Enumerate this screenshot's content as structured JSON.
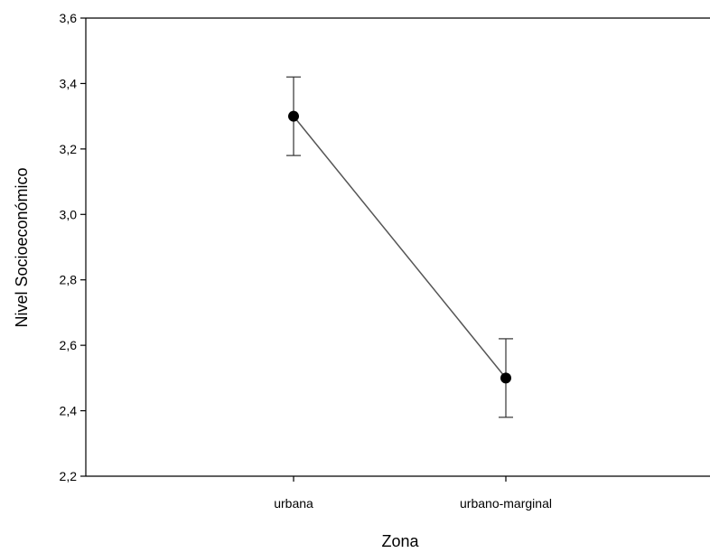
{
  "chart_data": {
    "type": "line",
    "title": "",
    "xlabel": "Zona",
    "ylabel": "Nivel Socioeconómico",
    "categories": [
      "urbana",
      "urbano-marginal"
    ],
    "series": [
      {
        "values": [
          3.3,
          2.5
        ],
        "error_low": [
          3.18,
          2.38
        ],
        "error_high": [
          3.42,
          2.62
        ]
      }
    ],
    "ylim": [
      2.2,
      3.6
    ],
    "yticks": [
      2.2,
      2.4,
      2.6,
      2.8,
      3.0,
      3.2,
      3.4,
      3.6
    ],
    "ytick_labels": [
      "2,2",
      "2,4",
      "2,6",
      "2,8",
      "3,0",
      "3,2",
      "3,4",
      "3,6"
    ],
    "grid": false,
    "legend": "none",
    "colors": {
      "line": "#555555",
      "marker": "#000000",
      "axis": "#000000"
    }
  }
}
